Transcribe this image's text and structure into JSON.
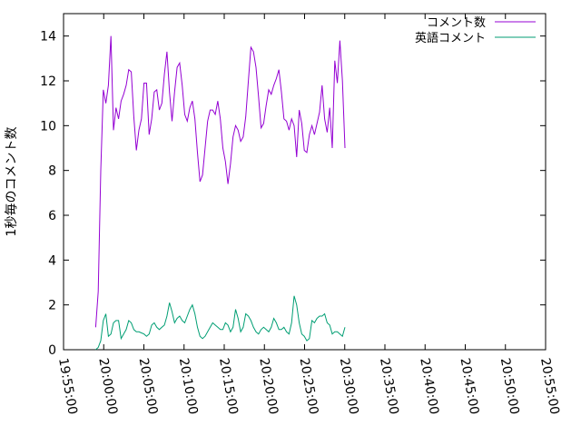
{
  "chart_data": {
    "type": "line",
    "title": "",
    "xlabel": "",
    "ylabel": "1秒毎のコメント数",
    "xlim": [
      "19:55:00",
      "20:55:00"
    ],
    "ylim": [
      0,
      15
    ],
    "x_ticks": [
      "19:55:00",
      "20:00:00",
      "20:05:00",
      "20:10:00",
      "20:15:00",
      "20:20:00",
      "20:25:00",
      "20:30:00",
      "20:35:00",
      "20:40:00",
      "20:45:00",
      "20:50:00",
      "20:55:00"
    ],
    "y_ticks": [
      0,
      2,
      4,
      6,
      8,
      10,
      12,
      14
    ],
    "grid": false,
    "legend_position": "top-right",
    "series": [
      {
        "name": "コメント数",
        "color": "#9400d3",
        "points": [
          [
            "19:59:00",
            1.0
          ],
          [
            "19:59:19",
            2.6
          ],
          [
            "19:59:38",
            8.0
          ],
          [
            "19:59:57",
            11.6
          ],
          [
            "20:00:16",
            11.0
          ],
          [
            "20:00:35",
            11.8
          ],
          [
            "20:00:54",
            14.0
          ],
          [
            "20:01:13",
            9.8
          ],
          [
            "20:01:32",
            10.8
          ],
          [
            "20:01:51",
            10.3
          ],
          [
            "20:02:10",
            11.1
          ],
          [
            "20:02:29",
            11.4
          ],
          [
            "20:02:48",
            11.8
          ],
          [
            "20:03:07",
            12.5
          ],
          [
            "20:03:26",
            12.4
          ],
          [
            "20:03:45",
            10.4
          ],
          [
            "20:04:04",
            8.9
          ],
          [
            "20:04:23",
            9.8
          ],
          [
            "20:04:42",
            10.3
          ],
          [
            "20:05:01",
            11.9
          ],
          [
            "20:05:20",
            11.9
          ],
          [
            "20:05:39",
            9.6
          ],
          [
            "20:05:58",
            10.3
          ],
          [
            "20:06:17",
            11.5
          ],
          [
            "20:06:36",
            11.6
          ],
          [
            "20:06:55",
            10.7
          ],
          [
            "20:07:14",
            11.0
          ],
          [
            "20:07:33",
            12.3
          ],
          [
            "20:07:52",
            13.3
          ],
          [
            "20:08:11",
            11.5
          ],
          [
            "20:08:30",
            10.2
          ],
          [
            "20:08:49",
            11.5
          ],
          [
            "20:09:08",
            12.6
          ],
          [
            "20:09:27",
            12.8
          ],
          [
            "20:09:46",
            11.8
          ],
          [
            "20:10:05",
            10.5
          ],
          [
            "20:10:24",
            10.2
          ],
          [
            "20:10:43",
            10.8
          ],
          [
            "20:11:02",
            11.1
          ],
          [
            "20:11:21",
            10.3
          ],
          [
            "20:11:40",
            8.8
          ],
          [
            "20:11:59",
            7.5
          ],
          [
            "20:12:18",
            7.8
          ],
          [
            "20:12:37",
            9.0
          ],
          [
            "20:12:56",
            10.2
          ],
          [
            "20:13:15",
            10.7
          ],
          [
            "20:13:34",
            10.7
          ],
          [
            "20:13:53",
            10.5
          ],
          [
            "20:14:12",
            11.1
          ],
          [
            "20:14:31",
            10.3
          ],
          [
            "20:14:50",
            9.0
          ],
          [
            "20:15:09",
            8.4
          ],
          [
            "20:15:28",
            7.4
          ],
          [
            "20:15:47",
            8.3
          ],
          [
            "20:16:06",
            9.5
          ],
          [
            "20:16:25",
            10.0
          ],
          [
            "20:16:44",
            9.8
          ],
          [
            "20:17:03",
            9.3
          ],
          [
            "20:17:22",
            9.5
          ],
          [
            "20:17:41",
            10.4
          ],
          [
            "20:18:00",
            12.0
          ],
          [
            "20:18:19",
            13.5
          ],
          [
            "20:18:38",
            13.3
          ],
          [
            "20:18:57",
            12.6
          ],
          [
            "20:19:16",
            11.3
          ],
          [
            "20:19:35",
            9.9
          ],
          [
            "20:19:54",
            10.1
          ],
          [
            "20:20:13",
            10.9
          ],
          [
            "20:20:32",
            11.6
          ],
          [
            "20:20:51",
            11.4
          ],
          [
            "20:21:10",
            11.8
          ],
          [
            "20:21:29",
            12.1
          ],
          [
            "20:21:48",
            12.5
          ],
          [
            "20:22:07",
            11.5
          ],
          [
            "20:22:26",
            10.3
          ],
          [
            "20:22:45",
            10.2
          ],
          [
            "20:23:04",
            9.8
          ],
          [
            "20:23:23",
            10.3
          ],
          [
            "20:23:42",
            10.0
          ],
          [
            "20:24:01",
            8.6
          ],
          [
            "20:24:20",
            10.7
          ],
          [
            "20:24:39",
            10.1
          ],
          [
            "20:24:58",
            8.9
          ],
          [
            "20:25:17",
            8.8
          ],
          [
            "20:25:36",
            9.6
          ],
          [
            "20:25:55",
            10.0
          ],
          [
            "20:26:14",
            9.6
          ],
          [
            "20:26:33",
            10.1
          ],
          [
            "20:26:52",
            10.6
          ],
          [
            "20:27:11",
            11.8
          ],
          [
            "20:27:30",
            10.3
          ],
          [
            "20:27:49",
            9.7
          ],
          [
            "20:28:08",
            10.8
          ],
          [
            "20:28:27",
            9.0
          ],
          [
            "20:28:46",
            12.9
          ],
          [
            "20:29:05",
            11.9
          ],
          [
            "20:29:24",
            13.8
          ],
          [
            "20:29:43",
            12.0
          ],
          [
            "20:30:02",
            9.0
          ]
        ]
      },
      {
        "name": "英語コメント",
        "color": "#009e73",
        "points": [
          [
            "19:59:00",
            0.0
          ],
          [
            "19:59:19",
            0.1
          ],
          [
            "19:59:38",
            0.4
          ],
          [
            "19:59:57",
            1.3
          ],
          [
            "20:00:16",
            1.6
          ],
          [
            "20:00:35",
            0.6
          ],
          [
            "20:00:54",
            0.7
          ],
          [
            "20:01:13",
            1.2
          ],
          [
            "20:01:32",
            1.3
          ],
          [
            "20:01:51",
            1.3
          ],
          [
            "20:02:10",
            0.5
          ],
          [
            "20:02:29",
            0.7
          ],
          [
            "20:02:48",
            0.9
          ],
          [
            "20:03:07",
            1.3
          ],
          [
            "20:03:26",
            1.2
          ],
          [
            "20:03:45",
            0.9
          ],
          [
            "20:04:04",
            0.8
          ],
          [
            "20:04:23",
            0.8
          ],
          [
            "20:04:42",
            0.75
          ],
          [
            "20:05:01",
            0.7
          ],
          [
            "20:05:20",
            0.6
          ],
          [
            "20:05:39",
            0.7
          ],
          [
            "20:05:58",
            1.1
          ],
          [
            "20:06:17",
            1.2
          ],
          [
            "20:06:36",
            1.0
          ],
          [
            "20:06:55",
            0.9
          ],
          [
            "20:07:14",
            1.0
          ],
          [
            "20:07:33",
            1.1
          ],
          [
            "20:07:52",
            1.5
          ],
          [
            "20:08:11",
            2.1
          ],
          [
            "20:08:30",
            1.7
          ],
          [
            "20:08:49",
            1.2
          ],
          [
            "20:09:08",
            1.4
          ],
          [
            "20:09:27",
            1.5
          ],
          [
            "20:09:46",
            1.3
          ],
          [
            "20:10:05",
            1.2
          ],
          [
            "20:10:24",
            1.5
          ],
          [
            "20:10:43",
            1.8
          ],
          [
            "20:11:02",
            2.0
          ],
          [
            "20:11:21",
            1.6
          ],
          [
            "20:11:40",
            1.0
          ],
          [
            "20:11:59",
            0.6
          ],
          [
            "20:12:18",
            0.5
          ],
          [
            "20:12:37",
            0.6
          ],
          [
            "20:12:56",
            0.8
          ],
          [
            "20:13:15",
            1.0
          ],
          [
            "20:13:34",
            1.2
          ],
          [
            "20:13:53",
            1.1
          ],
          [
            "20:14:12",
            1.0
          ],
          [
            "20:14:31",
            0.9
          ],
          [
            "20:14:50",
            0.9
          ],
          [
            "20:15:09",
            1.2
          ],
          [
            "20:15:28",
            1.1
          ],
          [
            "20:15:47",
            0.8
          ],
          [
            "20:16:06",
            1.0
          ],
          [
            "20:16:25",
            1.8
          ],
          [
            "20:16:44",
            1.4
          ],
          [
            "20:17:03",
            0.8
          ],
          [
            "20:17:22",
            1.0
          ],
          [
            "20:17:41",
            1.6
          ],
          [
            "20:18:00",
            1.5
          ],
          [
            "20:18:19",
            1.3
          ],
          [
            "20:18:38",
            1.0
          ],
          [
            "20:18:57",
            0.8
          ],
          [
            "20:19:16",
            0.7
          ],
          [
            "20:19:35",
            0.9
          ],
          [
            "20:19:54",
            1.0
          ],
          [
            "20:20:13",
            0.9
          ],
          [
            "20:20:32",
            0.8
          ],
          [
            "20:20:51",
            1.0
          ],
          [
            "20:21:10",
            1.4
          ],
          [
            "20:21:29",
            1.2
          ],
          [
            "20:21:48",
            0.9
          ],
          [
            "20:22:07",
            0.9
          ],
          [
            "20:22:26",
            1.0
          ],
          [
            "20:22:45",
            0.8
          ],
          [
            "20:23:04",
            0.7
          ],
          [
            "20:23:23",
            1.2
          ],
          [
            "20:23:42",
            2.4
          ],
          [
            "20:24:01",
            2.0
          ],
          [
            "20:24:20",
            1.2
          ],
          [
            "20:24:39",
            0.7
          ],
          [
            "20:24:58",
            0.6
          ],
          [
            "20:25:17",
            0.4
          ],
          [
            "20:25:36",
            0.5
          ],
          [
            "20:25:55",
            1.3
          ],
          [
            "20:26:14",
            1.2
          ],
          [
            "20:26:33",
            1.4
          ],
          [
            "20:26:52",
            1.5
          ],
          [
            "20:27:11",
            1.5
          ],
          [
            "20:27:30",
            1.6
          ],
          [
            "20:27:49",
            1.2
          ],
          [
            "20:28:08",
            1.1
          ],
          [
            "20:28:27",
            0.7
          ],
          [
            "20:28:46",
            0.8
          ],
          [
            "20:29:05",
            0.8
          ],
          [
            "20:29:24",
            0.7
          ],
          [
            "20:29:43",
            0.6
          ],
          [
            "20:30:02",
            1.0
          ]
        ]
      }
    ]
  }
}
